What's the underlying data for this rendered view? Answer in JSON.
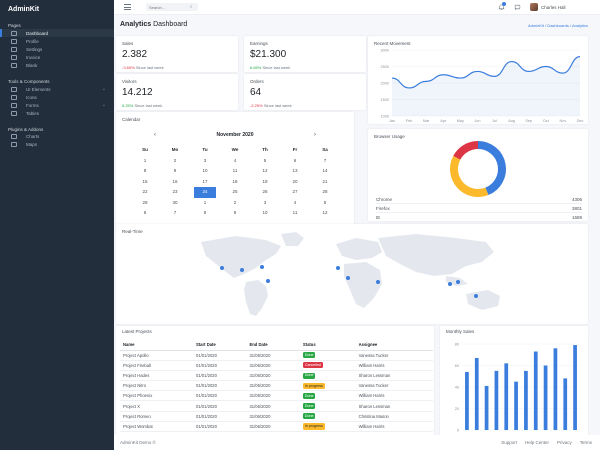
{
  "brand": "AdminKit",
  "sidebar": {
    "sections": [
      {
        "header": "Pages",
        "items": [
          {
            "label": "Dashboard",
            "active": true,
            "chevron": false
          },
          {
            "label": "Profile",
            "active": false,
            "chevron": false
          },
          {
            "label": "Settings",
            "active": false,
            "chevron": false
          },
          {
            "label": "Invoice",
            "active": false,
            "chevron": false
          },
          {
            "label": "Blank",
            "active": false,
            "chevron": false
          }
        ]
      },
      {
        "header": "Tools & Components",
        "items": [
          {
            "label": "UI Elements",
            "active": false,
            "chevron": true
          },
          {
            "label": "Icons",
            "active": false,
            "chevron": false
          },
          {
            "label": "Forms",
            "active": false,
            "chevron": true
          },
          {
            "label": "Tables",
            "active": false,
            "chevron": false
          }
        ]
      },
      {
        "header": "Plugins & Addons",
        "items": [
          {
            "label": "Charts",
            "active": false,
            "chevron": false
          },
          {
            "label": "Maps",
            "active": false,
            "chevron": false
          }
        ]
      }
    ]
  },
  "topbar": {
    "search_placeholder": "Search...",
    "user_name": "Charles Hall"
  },
  "page": {
    "title_bold": "Analytics",
    "title_rest": "Dashboard",
    "breadcrumb": "AdminKit / Dashboards / Analytics"
  },
  "stats": [
    {
      "title": "Sales",
      "value": "2.382",
      "delta": "-3.65%",
      "delta_type": "neg",
      "delta_note": "Since last week"
    },
    {
      "title": "Earnings",
      "value": "$21.300",
      "delta": "6.65%",
      "delta_type": "pos",
      "delta_note": "Since last week"
    },
    {
      "title": "Visitors",
      "value": "14.212",
      "delta": "5.25%",
      "delta_type": "pos",
      "delta_note": "Since last week"
    },
    {
      "title": "Orders",
      "value": "64",
      "delta": "-2.25%",
      "delta_type": "neg",
      "delta_note": "Since last week"
    }
  ],
  "movement": {
    "title": "Recent Movement",
    "chart_data": {
      "type": "area",
      "categories": [
        "Jan",
        "Feb",
        "Mar",
        "Apr",
        "May",
        "Jun",
        "Jul",
        "Aug",
        "Sep",
        "Oct",
        "Nov",
        "Dec"
      ],
      "values": [
        2150,
        1850,
        2050,
        2250,
        2150,
        2350,
        2200,
        2650,
        2350,
        2500,
        2300,
        2800
      ],
      "ylim": [
        1000,
        3000
      ],
      "yticks": [
        1000,
        1500,
        2000,
        2500,
        3000
      ],
      "grid": true,
      "color": "#3b7ddd"
    }
  },
  "calendar": {
    "title": "Calendar",
    "month": "November 2020",
    "prev": "‹",
    "next": "›",
    "weekdays": [
      "Su",
      "Mo",
      "Tu",
      "We",
      "Th",
      "Fr",
      "Sa"
    ],
    "weeks": [
      [
        "1",
        "2",
        "3",
        "4",
        "5",
        "6",
        "7"
      ],
      [
        "8",
        "9",
        "10",
        "11",
        "12",
        "13",
        "14"
      ],
      [
        "15",
        "16",
        "17",
        "18",
        "19",
        "20",
        "21"
      ],
      [
        "22",
        "23",
        "24",
        "25",
        "26",
        "27",
        "28"
      ],
      [
        "29",
        "30",
        "1",
        "2",
        "3",
        "4",
        "5"
      ],
      [
        "6",
        "7",
        "8",
        "9",
        "10",
        "11",
        "12"
      ]
    ],
    "selected": "24"
  },
  "browser": {
    "title": "Browser Usage",
    "chart_data": {
      "type": "pie",
      "categories": [
        "Chrome",
        "Firefox",
        "IE"
      ],
      "values": [
        4306,
        3801,
        1689
      ],
      "colors": [
        "#3b7ddd",
        "#fcb92c",
        "#dc3545"
      ],
      "donut": true
    },
    "rows": [
      {
        "name": "Chrome",
        "value": "4306"
      },
      {
        "name": "Firefox",
        "value": "3801"
      },
      {
        "name": "IE",
        "value": "1689"
      }
    ]
  },
  "realtime": {
    "title": "Real-Time"
  },
  "projects": {
    "title": "Latest Projects",
    "columns": [
      "Name",
      "Start Date",
      "End Date",
      "Status",
      "Assignee"
    ],
    "rows": [
      {
        "name": "Project Apollo",
        "start": "01/01/2020",
        "end": "31/06/2020",
        "status": "Done",
        "status_color": "#28a745",
        "assignee": "Vanessa Tucker"
      },
      {
        "name": "Project Fireball",
        "start": "01/01/2020",
        "end": "31/06/2020",
        "status": "Cancelled",
        "status_color": "#dc3545",
        "assignee": "William Harris"
      },
      {
        "name": "Project Hades",
        "start": "01/01/2020",
        "end": "31/06/2020",
        "status": "Done",
        "status_color": "#28a745",
        "assignee": "Sharon Lessman"
      },
      {
        "name": "Project Nitro",
        "start": "01/01/2020",
        "end": "31/06/2020",
        "status": "In progress",
        "status_color": "#fcb92c",
        "assignee": "Vanessa Tucker"
      },
      {
        "name": "Project Phoenix",
        "start": "01/01/2020",
        "end": "31/06/2020",
        "status": "Done",
        "status_color": "#28a745",
        "assignee": "William Harris"
      },
      {
        "name": "Project X",
        "start": "01/01/2020",
        "end": "31/06/2020",
        "status": "Done",
        "status_color": "#28a745",
        "assignee": "Sharon Lessman"
      },
      {
        "name": "Project Romeo",
        "start": "01/01/2020",
        "end": "31/06/2020",
        "status": "Done",
        "status_color": "#28a745",
        "assignee": "Christina Mason"
      },
      {
        "name": "Project Wombat",
        "start": "01/01/2020",
        "end": "31/06/2020",
        "status": "In progress",
        "status_color": "#fcb92c",
        "assignee": "William Harris"
      }
    ]
  },
  "monthly": {
    "title": "Monthly Sales",
    "chart_data": {
      "type": "bar",
      "categories": [
        "Jan",
        "Feb",
        "Mar",
        "Apr",
        "May",
        "Jun",
        "Jul",
        "Aug",
        "Sep",
        "Oct",
        "Nov",
        "Dec"
      ],
      "values": [
        54,
        67,
        41,
        55,
        62,
        45,
        55,
        73,
        60,
        76,
        48,
        79
      ],
      "ylim": [
        0,
        80
      ],
      "yticks": [
        0,
        20,
        40,
        60,
        80
      ],
      "color": "#3b7ddd"
    }
  },
  "footer": {
    "copyright": "AdminKit Demo ©",
    "links": [
      "Support",
      "Help Center",
      "Privacy",
      "Terms"
    ]
  }
}
